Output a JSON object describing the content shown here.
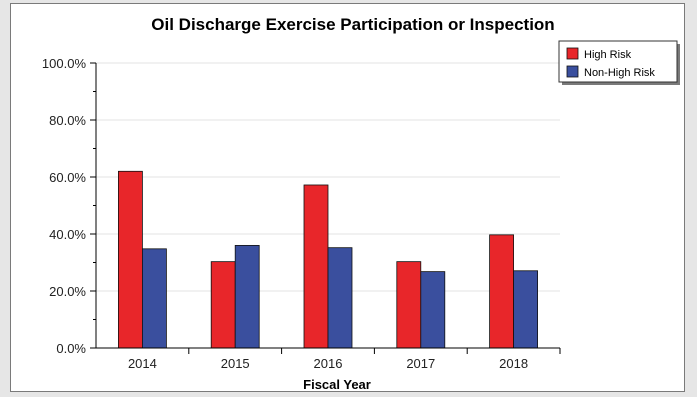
{
  "chart_data": {
    "type": "bar",
    "title": "Oil Discharge Exercise Participation or Inspection",
    "xlabel": "Fiscal Year",
    "ylabel": "",
    "categories": [
      "2014",
      "2015",
      "2016",
      "2017",
      "2018"
    ],
    "series": [
      {
        "name": "High Risk",
        "color": "#e8262a",
        "values": [
          62.0,
          30.3,
          57.2,
          30.3,
          39.7
        ]
      },
      {
        "name": "Non-High Risk",
        "color": "#3a4f9e",
        "values": [
          34.8,
          36.0,
          35.2,
          26.8,
          27.1
        ]
      }
    ],
    "ylim": [
      0,
      100
    ],
    "yticks": [
      "0.0%",
      "20.0%",
      "40.0%",
      "60.0%",
      "80.0%",
      "100.0%"
    ],
    "ytick_values": [
      0,
      20,
      40,
      60,
      80,
      100
    ],
    "grid": true,
    "legend_position": "top-right"
  }
}
